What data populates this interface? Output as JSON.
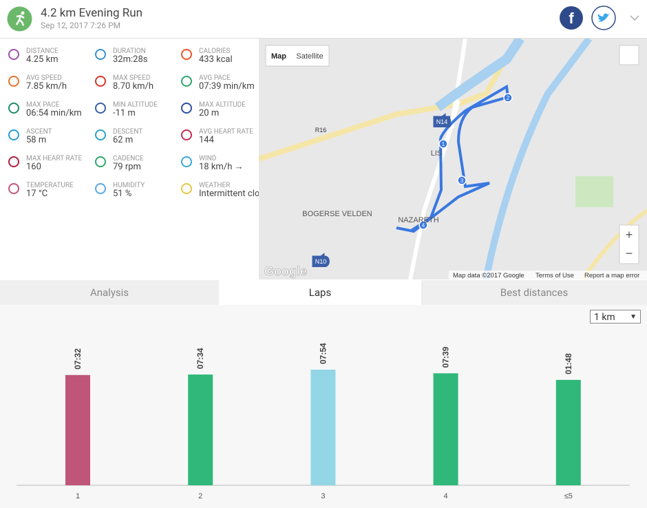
{
  "header": {
    "title": "4.2 km Evening Run",
    "date": "Sep 12, 2017 7:26 PM"
  },
  "stats": [
    {
      "label": "DISTANCE",
      "value": "4.25 km",
      "color": "#a24fae"
    },
    {
      "label": "DURATION",
      "value": "32m:28s",
      "color": "#3a8fd0"
    },
    {
      "label": "CALORIES",
      "value": "433 kcal",
      "color": "#e5582b"
    },
    {
      "label": "AVG SPEED",
      "value": "7.85 km/h",
      "color": "#e5732b"
    },
    {
      "label": "MAX SPEED",
      "value": "8.70 km/h",
      "color": "#d9352b"
    },
    {
      "label": "AVG PACE",
      "value": "07:39 min/km",
      "color": "#2fa86a"
    },
    {
      "label": "MAX PACE",
      "value": "06:54 min/km",
      "color": "#1e8a6a"
    },
    {
      "label": "MIN ALTITUDE",
      "value": "-11 m",
      "color": "#3a5fa8"
    },
    {
      "label": "MAX ALTITUDE",
      "value": "20 m",
      "color": "#2e4f9c"
    },
    {
      "label": "ASCENT",
      "value": "58 m",
      "color": "#2a9bd8"
    },
    {
      "label": "DESCENT",
      "value": "62 m",
      "color": "#2aa6c8"
    },
    {
      "label": "AVG HEART RATE",
      "value": "144",
      "color": "#c0304f"
    },
    {
      "label": "MAX HEART RATE",
      "value": "160",
      "color": "#b0203f"
    },
    {
      "label": "CADENCE",
      "value": "79 rpm",
      "color": "#2fa86a"
    },
    {
      "label": "WIND",
      "value": "18 km/h",
      "color": "#3aa8d8"
    },
    {
      "label": "TEMPERATURE",
      "value": "17 °C",
      "color": "#c0557a"
    },
    {
      "label": "HUMIDITY",
      "value": "51 %",
      "color": "#5aa8e8"
    },
    {
      "label": "WEATHER",
      "value": "Intermittent clouds",
      "color": "#e8c84a"
    }
  ],
  "map": {
    "buttons": [
      "Map",
      "Satellite"
    ],
    "places": [
      "BOGERSE VELDEN",
      "N14",
      "R16",
      "N10",
      "LIS",
      "NAZARETH"
    ],
    "logo": "Google",
    "footer": [
      "Map data ©2017 Google",
      "Terms of Use",
      "Report a map error"
    ],
    "zoom": [
      "+",
      "−"
    ],
    "markers": [
      "1",
      "2",
      "3",
      "4"
    ]
  },
  "tabs": [
    "Analysis",
    "Laps",
    "Best distances"
  ],
  "dropdown": "1 km",
  "chart_data": {
    "type": "bar",
    "categories": [
      "1",
      "2",
      "3",
      "4",
      "≤5"
    ],
    "values": [
      452,
      454,
      474,
      459,
      432
    ],
    "value_labels": [
      "07:32",
      "07:34",
      "07:54",
      "07:39",
      "01:48"
    ],
    "colors": [
      "#c0557a",
      "#2fb87a",
      "#93d6e6",
      "#2fb87a",
      "#2fb87a"
    ]
  }
}
